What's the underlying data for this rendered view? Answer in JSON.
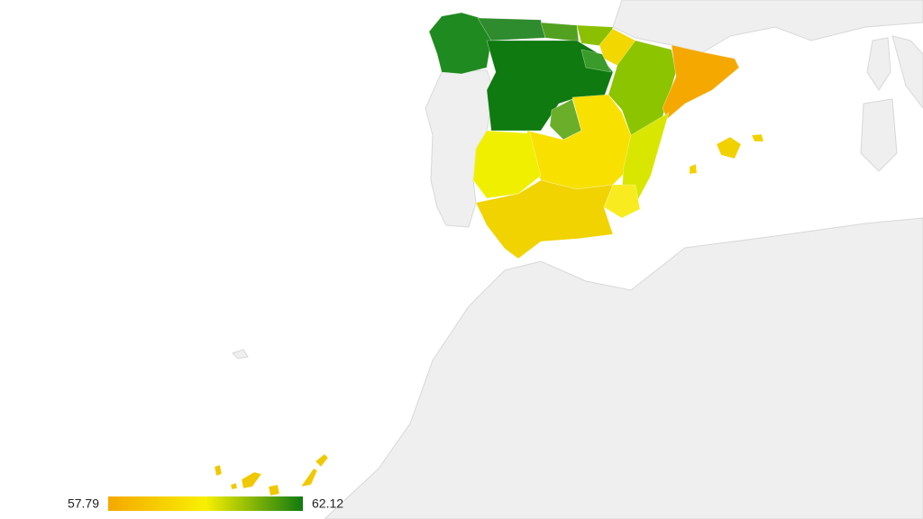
{
  "legend": {
    "min": {
      "value": 57.79,
      "label": "57.79"
    },
    "max": {
      "value": 62.12,
      "label": "62.12"
    },
    "colors": [
      "#f5a800",
      "#f8f000",
      "#0f7a0f"
    ]
  }
}
